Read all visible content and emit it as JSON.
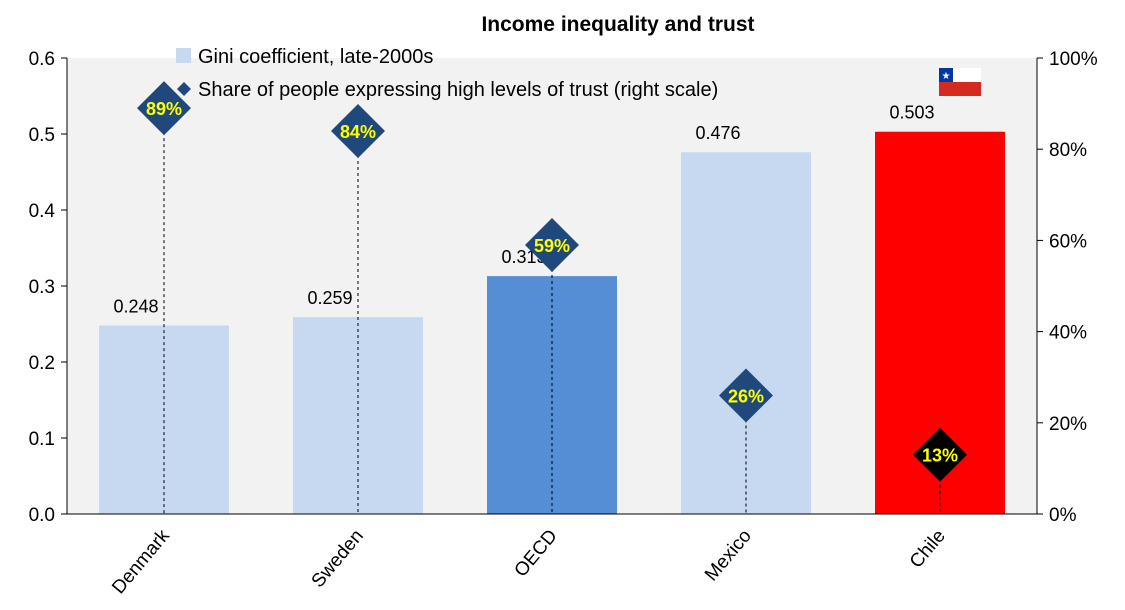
{
  "chart_data": {
    "type": "bar",
    "title": "Income inequality and trust",
    "categories": [
      "Denmark",
      "Sweden",
      "OECD",
      "Mexico",
      "Chile"
    ],
    "series": [
      {
        "name": "Gini coefficient, late-2000s",
        "axis": "left",
        "values": [
          0.248,
          0.259,
          0.313,
          0.476,
          0.503
        ],
        "value_labels": [
          "0.248",
          "0.259",
          "0.313",
          "0.476",
          "0.503"
        ],
        "colors": [
          "#c6d9f1",
          "#c6d9f1",
          "#558ed5",
          "#c6d9f1",
          "#ff0000"
        ]
      },
      {
        "name": "Share of people expressing high levels of trust (right scale)",
        "axis": "right",
        "type": "diamond",
        "values": [
          89,
          84,
          59,
          26,
          13
        ],
        "value_labels": [
          "89%",
          "84%",
          "59%",
          "26%",
          "13%"
        ],
        "marker_colors": [
          "#1f497d",
          "#1f497d",
          "#1f497d",
          "#1f497d",
          "#000000"
        ],
        "label_color": "#ffff00"
      }
    ],
    "y_left": {
      "ylim": [
        0,
        0.6
      ],
      "ticks": [
        "0.0",
        "0.1",
        "0.2",
        "0.3",
        "0.4",
        "0.5",
        "0.6"
      ]
    },
    "y_right": {
      "ylim": [
        0,
        100
      ],
      "ticks": [
        "0%",
        "20%",
        "40%",
        "60%",
        "80%",
        "100%"
      ]
    },
    "legend": [
      {
        "label": "Gini coefficient, late-2000s",
        "color": "#c6d9f1",
        "shape": "square"
      },
      {
        "label": "Share of people expressing high levels of trust (right scale)",
        "color": "#1f497d",
        "shape": "diamond"
      }
    ],
    "legend_position": "top-left",
    "plot_background": "#f2f2f2",
    "grid": false,
    "flag_icon": "chile-flag-icon"
  }
}
